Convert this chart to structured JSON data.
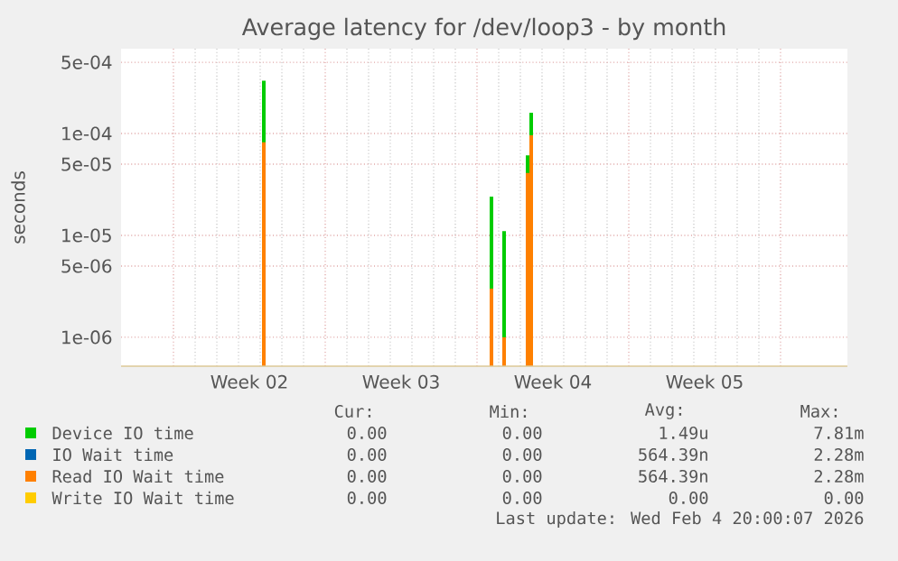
{
  "chart_data": {
    "type": "bar",
    "title": "Average latency for /dev/loop3 - by month",
    "ylabel": "seconds",
    "x": [
      "2026-01-09T04:00",
      "2026-01-19T16:00",
      "2026-01-20T06:00",
      "2026-01-21T08:00",
      "2026-01-21T12:00"
    ],
    "series": [
      {
        "name": "Device IO time",
        "color": "#00cc00",
        "values": [
          0.00033,
          2.4e-05,
          1.1e-05,
          6.1e-05,
          0.00016
        ]
      },
      {
        "name": "IO Wait time",
        "color": "#0066b3",
        "values": [
          null,
          null,
          null,
          null,
          null
        ]
      },
      {
        "name": "Read IO Wait time",
        "color": "#ff8000",
        "values": [
          8.2e-05,
          3e-06,
          1e-06,
          4.1e-05,
          9.6e-05
        ]
      },
      {
        "name": "Write IO Wait time",
        "color": "#ffcc00",
        "values": [
          null,
          null,
          null,
          null,
          null
        ]
      }
    ],
    "log": "y",
    "grid": true,
    "legend": "bottom",
    "xlim": [
      "2026-01-02T14:00",
      "2026-02-05T02:00"
    ],
    "xticks": [
      {
        "value": "2026-01-05T00:00",
        "label": null
      },
      {
        "value": "2026-01-12T00:00",
        "label": null
      },
      {
        "value": "2026-01-19T00:00",
        "label": null
      },
      {
        "value": "2026-01-26T00:00",
        "label": null
      },
      {
        "value": "2026-02-02T00:00",
        "label": null
      },
      {
        "value": "2026-01-08T12:00",
        "label": "Week 02"
      },
      {
        "value": "2026-01-15T12:00",
        "label": "Week 03"
      },
      {
        "value": "2026-01-22T12:00",
        "label": "Week 04"
      },
      {
        "value": "2026-01-29T12:00",
        "label": "Week 05"
      }
    ],
    "ylim": [
      5.2e-07,
      0.00068
    ],
    "yticks": [
      {
        "value": 1e-06,
        "label": "1e-06"
      },
      {
        "value": 5e-06,
        "label": "5e-06"
      },
      {
        "value": 1e-05,
        "label": "1e-05"
      },
      {
        "value": 5e-05,
        "label": "5e-05"
      },
      {
        "value": 0.0001,
        "label": "1e-04"
      },
      {
        "value": 0.0005,
        "label": "5e-04"
      }
    ],
    "annotations": [
      "Cur:",
      "Min:",
      "Avg:",
      "Max:",
      "0.00",
      "0.00",
      "1.49u",
      "7.81m",
      "0.00",
      "0.00",
      "564.39n",
      "2.28m",
      "0.00",
      "0.00",
      "564.39n",
      "2.28m",
      "0.00",
      "0.00",
      "0.00",
      "0.00",
      "Last update: Wed Feb  4 20:00:07 2026"
    ]
  }
}
